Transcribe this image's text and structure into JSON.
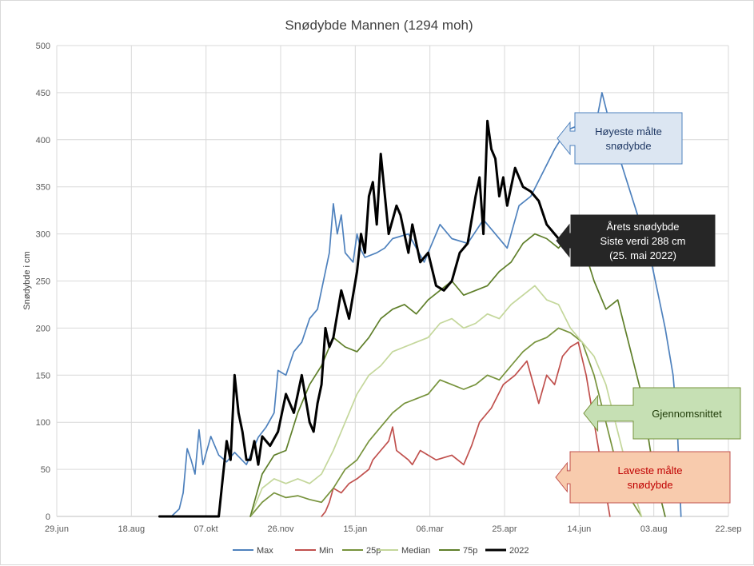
{
  "chart_data": {
    "type": "line",
    "title": "Snødybde Mannen (1294 moh)",
    "ylabel": "Snødybde i cm",
    "xlabel": "",
    "ylim": [
      0,
      500
    ],
    "yticks": [
      0,
      50,
      100,
      150,
      200,
      250,
      300,
      350,
      400,
      450,
      500
    ],
    "xlim_day": [
      0,
      85
    ],
    "xtick_labels": [
      "29.jun",
      "18.aug",
      "07.okt",
      "26.nov",
      "15.jan",
      "06.mar",
      "25.apr",
      "14.jun",
      "03.aug",
      "22.sep"
    ],
    "grid": true,
    "legend_position": "bottom",
    "series": [
      {
        "name": "Max",
        "color": "#4e81bd",
        "x": [
          14.5,
          15.5,
          16.0,
          16.5,
          17.0,
          17.5,
          18.0,
          18.5,
          19.5,
          20.5,
          21.5,
          22.5,
          24.0,
          25.5,
          26.5,
          27.5,
          28.0,
          29.0,
          30.0,
          31.0,
          32.0,
          33.0,
          34.5,
          35.0,
          35.5,
          36.0,
          36.5,
          37.5,
          38.0,
          38.5,
          39.0,
          40.5,
          41.5,
          42.5,
          44.5,
          46.5,
          48.5,
          50.0,
          52.0,
          54.0,
          55.5,
          57.0,
          58.5,
          60.0,
          61.5,
          63.0,
          64.5,
          66.0,
          67.5,
          69.0,
          70.5,
          72.0,
          73.5,
          75.0,
          76.0,
          77.0,
          78.0,
          78.5,
          79.0
        ],
        "values": [
          0,
          8,
          25,
          72,
          60,
          45,
          92,
          55,
          85,
          65,
          58,
          68,
          55,
          84,
          95,
          110,
          155,
          150,
          175,
          185,
          210,
          220,
          280,
          332,
          300,
          320,
          280,
          270,
          300,
          283,
          275,
          280,
          285,
          295,
          300,
          270,
          310,
          295,
          290,
          315,
          300,
          285,
          330,
          340,
          365,
          390,
          410,
          415,
          385,
          450,
          400,
          360,
          320,
          280,
          240,
          200,
          150,
          100,
          0
        ]
      },
      {
        "name": "Min",
        "color": "#c0504d",
        "x": [
          33.5,
          34.0,
          34.5,
          35.0,
          36.0,
          37.0,
          38.0,
          39.5,
          40.0,
          41.0,
          42.0,
          42.5,
          43.0,
          44.5,
          45.0,
          46.0,
          48.0,
          50.0,
          51.5,
          52.5,
          53.5,
          55.0,
          56.5,
          58.0,
          59.5,
          61.0,
          62.0,
          63.0,
          64.0,
          65.0,
          66.0,
          67.0,
          68.0,
          69.0,
          70.0
        ],
        "values": [
          0,
          5,
          15,
          30,
          25,
          35,
          40,
          50,
          60,
          70,
          80,
          95,
          70,
          60,
          55,
          70,
          60,
          65,
          55,
          75,
          100,
          115,
          140,
          150,
          165,
          120,
          150,
          140,
          170,
          180,
          185,
          150,
          100,
          50,
          0
        ]
      },
      {
        "name": "25p",
        "color": "#77933c",
        "x": [
          24.5,
          26.0,
          27.5,
          29.0,
          30.5,
          32.0,
          33.5,
          35.0,
          36.5,
          38.0,
          39.5,
          41.0,
          42.5,
          44.0,
          45.5,
          47.0,
          48.5,
          50.0,
          51.5,
          53.0,
          54.5,
          56.0,
          57.5,
          59.0,
          60.5,
          62.0,
          63.5,
          65.0,
          66.5,
          68.0,
          69.5,
          71.0,
          72.5,
          74.0
        ],
        "values": [
          0,
          15,
          25,
          20,
          22,
          18,
          15,
          30,
          50,
          60,
          80,
          95,
          110,
          120,
          125,
          130,
          145,
          140,
          135,
          140,
          150,
          145,
          160,
          175,
          185,
          190,
          200,
          195,
          185,
          150,
          100,
          50,
          20,
          0
        ]
      },
      {
        "name": "Median",
        "color": "#c4d79b",
        "x": [
          24.5,
          26.0,
          27.5,
          29.0,
          30.5,
          32.0,
          33.5,
          35.0,
          36.5,
          38.0,
          39.5,
          41.0,
          42.5,
          44.0,
          45.5,
          47.0,
          48.5,
          50.0,
          51.5,
          53.0,
          54.5,
          56.0,
          57.5,
          59.0,
          60.5,
          62.0,
          63.5,
          65.0,
          66.5,
          68.0,
          69.5,
          71.0,
          72.5,
          74.0
        ],
        "values": [
          0,
          30,
          40,
          35,
          40,
          35,
          45,
          70,
          100,
          130,
          150,
          160,
          175,
          180,
          185,
          190,
          205,
          210,
          200,
          205,
          215,
          210,
          225,
          235,
          245,
          230,
          225,
          200,
          185,
          170,
          140,
          90,
          40,
          0
        ]
      },
      {
        "name": "75p",
        "color": "#5f7f2a",
        "x": [
          24.5,
          26.0,
          27.5,
          29.0,
          30.5,
          32.0,
          33.5,
          35.0,
          36.5,
          38.0,
          39.5,
          41.0,
          42.5,
          44.0,
          45.5,
          47.0,
          48.5,
          50.0,
          51.5,
          53.0,
          54.5,
          56.0,
          57.5,
          59.0,
          60.5,
          62.0,
          63.5,
          65.0,
          66.5,
          68.0,
          69.5,
          71.0,
          72.5,
          74.0,
          75.5,
          77.0
        ],
        "values": [
          0,
          45,
          65,
          70,
          110,
          140,
          160,
          190,
          180,
          175,
          190,
          210,
          220,
          225,
          215,
          230,
          240,
          250,
          235,
          240,
          245,
          260,
          270,
          290,
          300,
          295,
          285,
          300,
          290,
          250,
          220,
          230,
          180,
          130,
          50,
          0
        ]
      },
      {
        "name": "2022",
        "color": "#000000",
        "x": [
          13.0,
          20.5,
          21.0,
          21.5,
          22.0,
          22.5,
          23.0,
          23.5,
          24.0,
          24.5,
          25.0,
          25.5,
          26.0,
          27.0,
          28.0,
          29.0,
          30.0,
          31.0,
          32.0,
          32.5,
          33.0,
          33.5,
          34.0,
          34.5,
          35.0,
          36.0,
          37.0,
          38.0,
          38.5,
          39.0,
          39.5,
          40.0,
          40.5,
          41.0,
          42.0,
          43.0,
          43.5,
          44.0,
          44.5,
          45.0,
          46.0,
          47.0,
          48.0,
          49.0,
          50.0,
          51.0,
          52.0,
          53.0,
          53.5,
          54.0,
          54.5,
          55.0,
          55.5,
          56.0,
          56.5,
          57.0,
          58.0,
          59.0,
          60.0,
          61.0,
          62.0,
          63.0,
          64.0,
          65.0
        ],
        "values": [
          0,
          0,
          40,
          80,
          60,
          150,
          110,
          90,
          60,
          60,
          80,
          55,
          85,
          75,
          90,
          130,
          110,
          150,
          100,
          90,
          120,
          140,
          200,
          180,
          190,
          240,
          210,
          260,
          300,
          280,
          340,
          355,
          310,
          385,
          300,
          330,
          320,
          300,
          280,
          310,
          270,
          280,
          245,
          240,
          250,
          280,
          290,
          340,
          360,
          300,
          420,
          390,
          380,
          340,
          360,
          330,
          370,
          350,
          345,
          335,
          310,
          300,
          290,
          288
        ]
      }
    ],
    "callouts": [
      {
        "label": "Høyeste målte snødybde",
        "lines": [
          "Høyeste målte",
          "snødybde"
        ]
      },
      {
        "label": "Årets snødybde Siste verdi 288 cm (25. mai 2022)",
        "lines": [
          "Årets snødybde",
          "Siste verdi 288 cm",
          "(25. mai 2022)"
        ]
      },
      {
        "label": "Gjennomsnittet",
        "lines": [
          "Gjennomsnittet"
        ]
      },
      {
        "label": "Laveste målte snødybde",
        "lines": [
          "Laveste målte",
          "snødybde"
        ]
      }
    ]
  },
  "legend": [
    {
      "label": "Max",
      "color": "#4e81bd"
    },
    {
      "label": "Min",
      "color": "#c0504d"
    },
    {
      "label": "25p",
      "color": "#77933c"
    },
    {
      "label": "Median",
      "color": "#c4d79b"
    },
    {
      "label": "75p",
      "color": "#5f7f2a"
    },
    {
      "label": "2022",
      "color": "#000000"
    }
  ]
}
